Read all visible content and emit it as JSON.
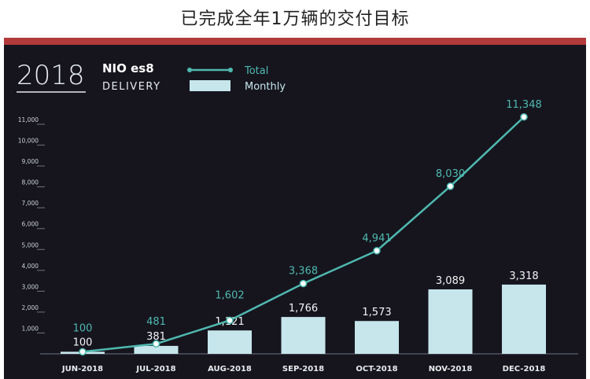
{
  "headline": "已完成全年1万辆的交付目标",
  "brand": {
    "year": "2018",
    "logo_text": "NIO es8",
    "subtitle": "DELIVERY"
  },
  "colors": {
    "bars": "#c6e6ec",
    "line": "#4fb9b0",
    "background": "#16151e",
    "accent_bar": "#b23a3a",
    "axis_text": "#cfd3da"
  },
  "chart_data": {
    "type": "bar+line",
    "categories": [
      "JUN-2018",
      "JUL-2018",
      "AUG-2018",
      "SEP-2018",
      "OCT-2018",
      "NOV-2018",
      "DEC-2018"
    ],
    "series": [
      {
        "name": "Total",
        "kind": "line",
        "values": [
          100,
          481,
          1602,
          3368,
          4941,
          8030,
          11348
        ],
        "labels": [
          "100",
          "481",
          "1,602",
          "3,368",
          "4,941",
          "8,030",
          "11,348"
        ]
      },
      {
        "name": "Monthly",
        "kind": "bar",
        "values": [
          100,
          381,
          1121,
          1766,
          1573,
          3089,
          3318
        ],
        "labels": [
          "100",
          "381",
          "1,121",
          "1,766",
          "1,573",
          "3,089",
          "3,318"
        ]
      }
    ],
    "y_ticks": [
      "1,000",
      "2,000",
      "3,000",
      "4,000",
      "5,000",
      "6,000",
      "7,000",
      "8,000",
      "9,000",
      "10,000",
      "11,000"
    ],
    "ylim": [
      0,
      11000
    ],
    "legend": {
      "position": "top-left",
      "entries": [
        "Total",
        "Monthly"
      ]
    },
    "grid": false
  }
}
